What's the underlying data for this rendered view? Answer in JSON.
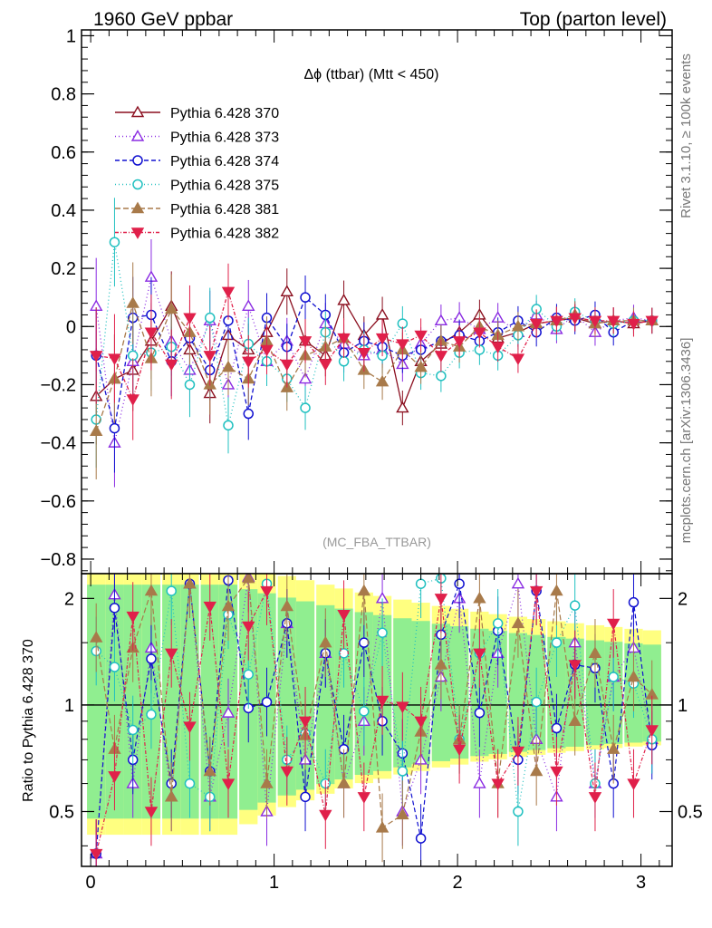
{
  "header": {
    "left": "1960 GeV ppbar",
    "right": "Top (parton level)"
  },
  "side_labels": {
    "rivet": "Rivet 3.1.10, ≥ 100k events",
    "mcplots": "mcplots.cern.ch [arXiv:1306.3436]"
  },
  "analysis_tag": "(MC_FBA_TTBAR)",
  "chart_data": [
    {
      "type": "line",
      "title": "Δϕ (ttbar) (Mtt < 450)",
      "xlabel": "",
      "ylabel": "",
      "xlim": [
        -0.05,
        3.17
      ],
      "ylim": [
        -0.85,
        1.02
      ],
      "yticks": [
        -0.8,
        -0.6,
        -0.4,
        -0.2,
        0,
        0.2,
        0.4,
        0.6,
        0.8,
        1
      ],
      "yticklabels": [
        "−0.8",
        "−0.6",
        "−0.4",
        "−0.2",
        "0",
        "0.2",
        "0.4",
        "0.6",
        "0.8",
        "1"
      ],
      "grid": false,
      "legend_position": "top-left",
      "x": [
        0.03,
        0.13,
        0.23,
        0.33,
        0.44,
        0.54,
        0.65,
        0.75,
        0.86,
        0.96,
        1.07,
        1.17,
        1.28,
        1.38,
        1.49,
        1.59,
        1.7,
        1.8,
        1.91,
        2.01,
        2.12,
        2.22,
        2.33,
        2.43,
        2.54,
        2.64,
        2.75,
        2.85,
        2.96,
        3.06
      ],
      "series": [
        {
          "name": "Pythia 6.428 370",
          "color": "#8b0f1f",
          "marker": "triangle-up-open",
          "dash": "",
          "y": [
            -0.24,
            -0.18,
            -0.15,
            -0.05,
            0.07,
            -0.08,
            -0.23,
            -0.03,
            -0.08,
            -0.02,
            0.12,
            -0.05,
            -0.1,
            0.09,
            -0.03,
            0.04,
            -0.28,
            -0.12,
            -0.06,
            -0.02,
            0.04,
            -0.04,
            -0.02,
            0.01,
            0.02,
            0.03,
            0.01,
            0.02,
            0.01,
            0.02
          ]
        },
        {
          "name": "Pythia 6.428 373",
          "color": "#8a2be2",
          "marker": "triangle-up-open",
          "dash": "1,3",
          "y": [
            0.07,
            -0.4,
            -0.12,
            0.17,
            -0.05,
            -0.15,
            0.02,
            -0.2,
            0.07,
            -0.12,
            -0.05,
            -0.18,
            0.01,
            -0.06,
            -0.1,
            -0.08,
            -0.13,
            -0.06,
            0.02,
            0.03,
            -0.01,
            0.03,
            -0.02,
            0.04,
            -0.01,
            0.04,
            -0.02,
            0.02,
            0.03,
            0.02
          ]
        },
        {
          "name": "Pythia 6.428 374",
          "color": "#1010d0",
          "marker": "circle-open",
          "dash": "5,3",
          "y": [
            -0.1,
            -0.35,
            0.03,
            0.04,
            -0.12,
            -0.04,
            -0.15,
            0.02,
            -0.3,
            0.03,
            -0.07,
            0.1,
            0.04,
            -0.09,
            -0.05,
            -0.07,
            -0.1,
            -0.08,
            -0.05,
            -0.03,
            -0.05,
            -0.02,
            0.02,
            -0.02,
            0.03,
            0.02,
            0.04,
            -0.02,
            0.02,
            0.02
          ]
        },
        {
          "name": "Pythia 6.428 375",
          "color": "#20c0c0",
          "marker": "circle-open",
          "dash": "1,3",
          "y": [
            -0.32,
            0.29,
            -0.1,
            -0.09,
            -0.07,
            -0.2,
            0.03,
            -0.34,
            -0.06,
            -0.12,
            -0.18,
            -0.28,
            -0.02,
            -0.12,
            -0.08,
            -0.1,
            0.01,
            -0.16,
            -0.17,
            -0.09,
            -0.08,
            -0.1,
            -0.03,
            0.06,
            0.0,
            0.05,
            0.02,
            0.01,
            0.02,
            0.02
          ]
        },
        {
          "name": "Pythia 6.428 381",
          "color": "#a87a4a",
          "marker": "triangle-up-filled",
          "dash": "6,3",
          "y": [
            -0.36,
            -0.18,
            0.08,
            -0.11,
            0.06,
            -0.02,
            -0.2,
            -0.14,
            -0.18,
            -0.05,
            -0.21,
            -0.1,
            -0.07,
            -0.04,
            -0.15,
            -0.19,
            -0.08,
            -0.14,
            -0.05,
            -0.07,
            0.0,
            -0.03,
            0.0,
            0.01,
            0.02,
            0.04,
            0.01,
            0.02,
            0.02,
            0.02
          ]
        },
        {
          "name": "Pythia 6.428 382",
          "color": "#e0204a",
          "marker": "triangle-down-filled",
          "dash": "4,2,1,2",
          "y": [
            -0.1,
            -0.11,
            -0.25,
            -0.02,
            -0.13,
            0.03,
            -0.1,
            0.12,
            -0.12,
            -0.08,
            -0.13,
            -0.05,
            -0.13,
            -0.04,
            -0.09,
            -0.04,
            -0.06,
            -0.03,
            -0.1,
            -0.05,
            -0.02,
            -0.07,
            -0.11,
            0.01,
            0.02,
            0.03,
            0.02,
            0.02,
            0.01,
            0.02
          ]
        }
      ]
    },
    {
      "type": "line",
      "title": "",
      "xlabel": "",
      "ylabel": "Ratio to Pythia 6.428 370",
      "xlim": [
        -0.05,
        3.17
      ],
      "ylim": [
        0.35,
        2.35
      ],
      "xticks": [
        0,
        1,
        2,
        3
      ],
      "xticklabels": [
        "0",
        "1",
        "2",
        "3"
      ],
      "yticks": [
        0.5,
        1,
        2
      ],
      "yticklabels": [
        "0.5",
        "1",
        "2"
      ],
      "reference_line": 1,
      "band_colors": {
        "inner": "#90ee90",
        "outer": "#ffff80"
      },
      "x": [
        0.03,
        0.13,
        0.23,
        0.33,
        0.44,
        0.54,
        0.65,
        0.75,
        0.86,
        0.96,
        1.07,
        1.17,
        1.28,
        1.38,
        1.49,
        1.59,
        1.7,
        1.8,
        1.91,
        2.01,
        2.12,
        2.22,
        2.33,
        2.43,
        2.54,
        2.64,
        2.75,
        2.85,
        2.96,
        3.06
      ],
      "series": [
        {
          "name": "Pythia 6.428 373",
          "color": "#8a2be2",
          "marker": "triangle-up-open",
          "dash": "1,3",
          "y": [
            0.38,
            2.05,
            0.6,
            1.45,
            0.55,
            2.2,
            0.55,
            0.95,
            2.3,
            0.5,
            1.7,
            0.7,
            1.4,
            0.6,
            0.9,
            2.0,
            0.5,
            0.7,
            1.2,
            2.0,
            0.6,
            1.4,
            2.2,
            0.8,
            0.55,
            1.5,
            0.6,
            1.2,
            1.45,
            0.8
          ]
        },
        {
          "name": "Pythia 6.428 374",
          "color": "#1010d0",
          "marker": "circle-open",
          "dash": "5,3",
          "y": [
            0.38,
            1.88,
            0.7,
            1.35,
            0.6,
            2.2,
            0.65,
            2.25,
            0.98,
            1.02,
            1.7,
            0.55,
            1.4,
            0.75,
            1.5,
            0.9,
            0.73,
            0.42,
            1.58,
            2.2,
            0.95,
            1.62,
            0.7,
            2.1,
            0.86,
            1.3,
            1.27,
            0.6,
            1.95,
            0.77
          ]
        },
        {
          "name": "Pythia 6.428 375",
          "color": "#20c0c0",
          "marker": "circle-open",
          "dash": "1,3",
          "y": [
            1.42,
            1.28,
            0.85,
            0.94,
            2.1,
            0.6,
            0.55,
            1.8,
            1.22,
            2.2,
            0.7,
            0.83,
            0.6,
            1.4,
            0.96,
            1.6,
            0.65,
            2.2,
            2.28,
            0.8,
            1.4,
            1.7,
            0.5,
            1.02,
            1.5,
            1.91,
            0.6,
            1.2,
            1.15,
            0.8
          ]
        },
        {
          "name": "Pythia 6.428 381",
          "color": "#a87a4a",
          "marker": "triangle-up-filled",
          "dash": "6,3",
          "y": [
            1.55,
            0.75,
            1.45,
            2.1,
            0.55,
            2.2,
            0.65,
            1.9,
            2.28,
            0.6,
            1.9,
            0.82,
            1.5,
            0.6,
            2.1,
            0.45,
            0.49,
            0.84,
            1.3,
            0.8,
            2.0,
            0.6,
            1.7,
            0.65,
            2.1,
            0.9,
            1.4,
            0.75,
            1.2,
            1.07
          ]
        },
        {
          "name": "Pythia 6.428 382",
          "color": "#e0204a",
          "marker": "triangle-down-filled",
          "dash": "4,2,1,2",
          "y": [
            0.38,
            0.63,
            1.78,
            0.5,
            1.4,
            0.87,
            1.9,
            0.6,
            1.67,
            2.1,
            0.65,
            0.9,
            0.49,
            1.8,
            0.55,
            1.03,
            0.99,
            0.9,
            2.0,
            0.75,
            1.4,
            0.6,
            0.74,
            2.1,
            0.65,
            1.3,
            0.55,
            1.7,
            0.6,
            0.85
          ]
        }
      ]
    }
  ]
}
